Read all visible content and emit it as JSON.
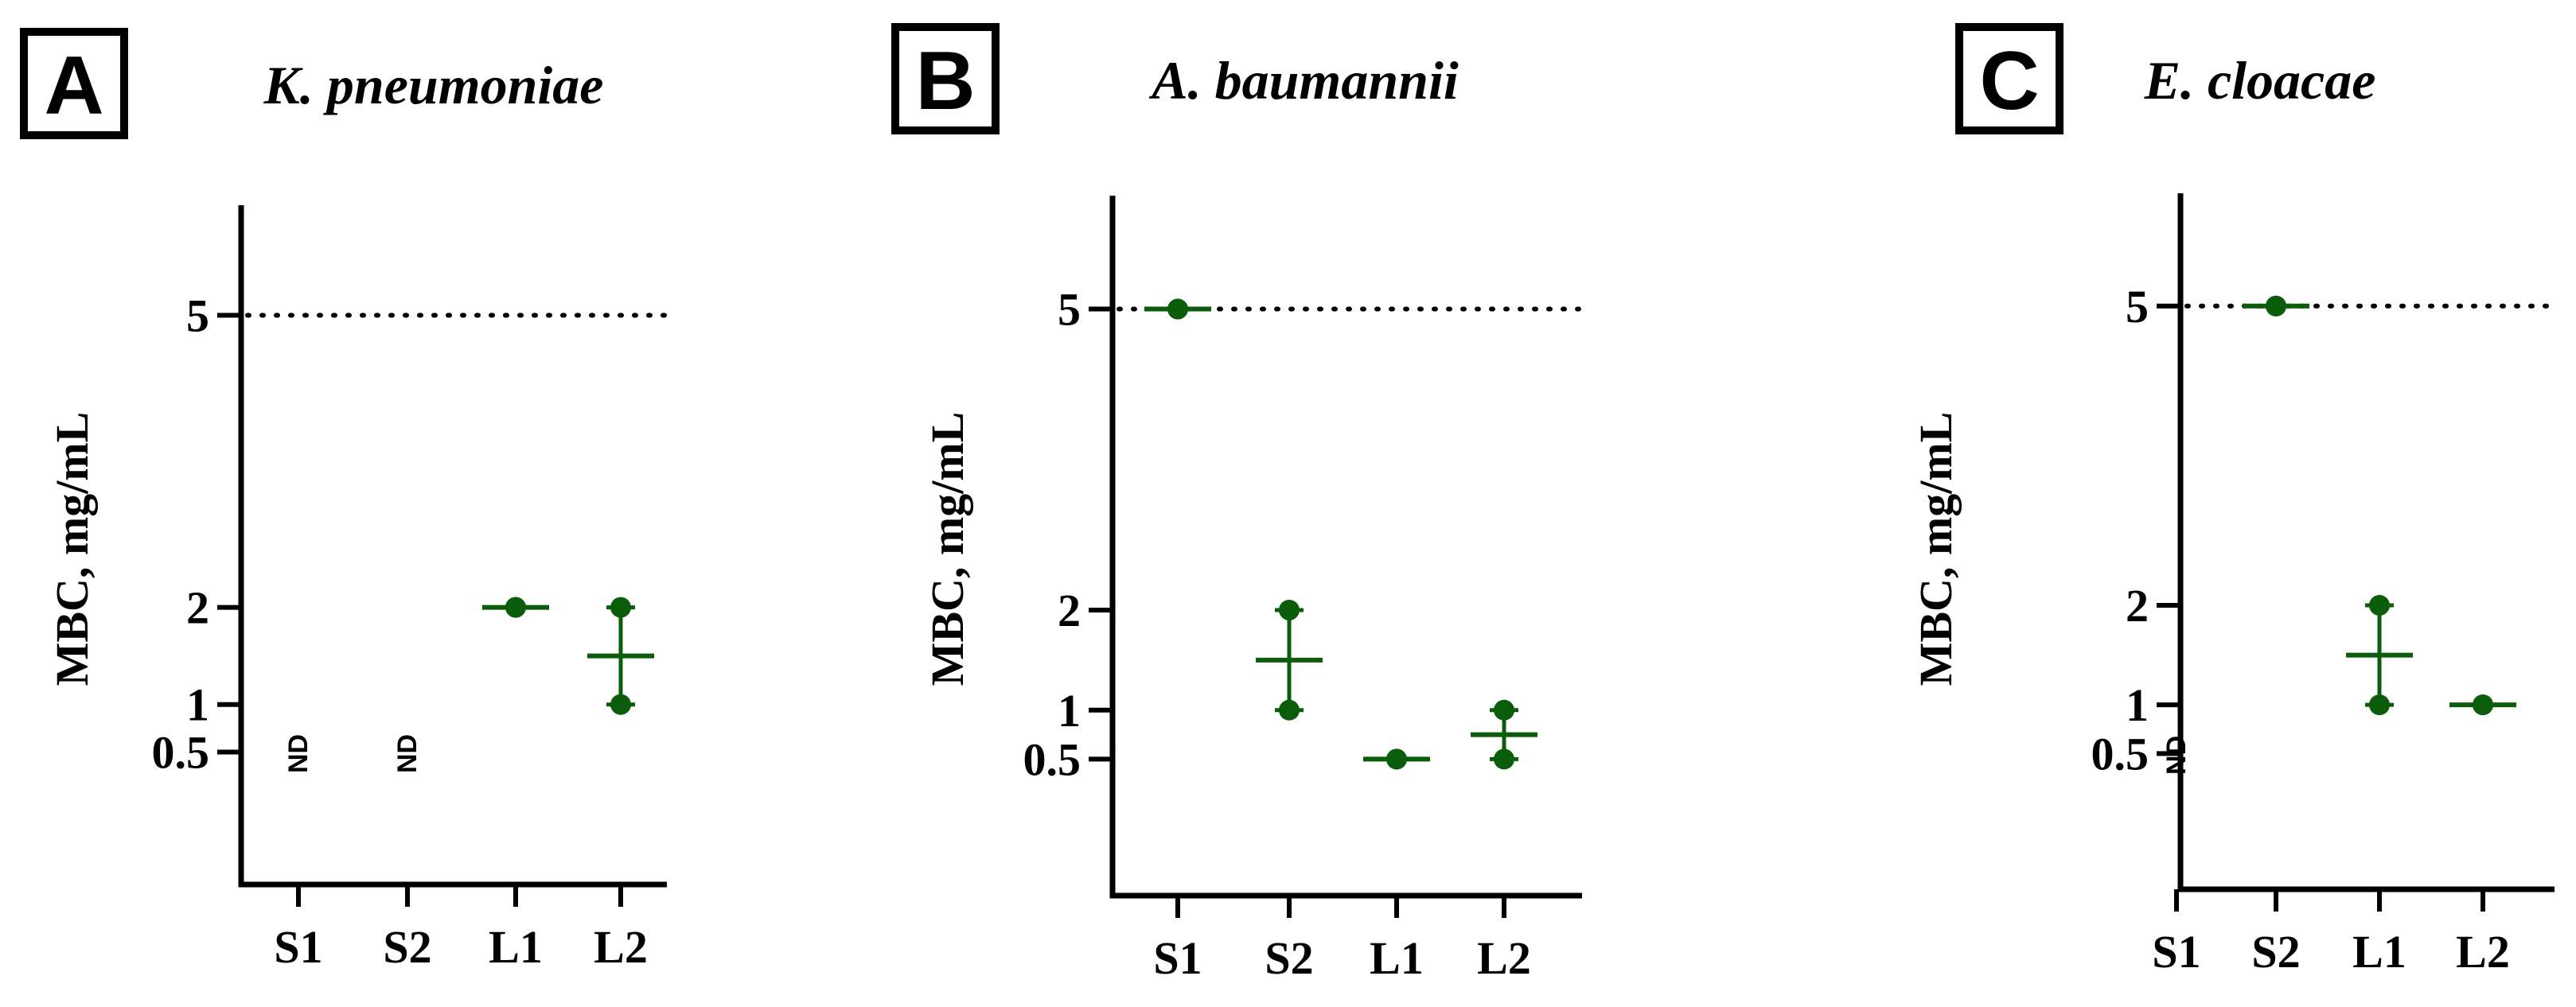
{
  "figure": {
    "accent_color": "#0b5d0b",
    "axis_color": "#000000"
  },
  "chart_data": [
    {
      "type": "scatter",
      "panel_label": "A",
      "title": "K. pneumoniae",
      "ylabel": "MBC, mg/mL",
      "xlabel": "",
      "categories": [
        "S1",
        "S2",
        "L1",
        "L2"
      ],
      "y_ticks": [
        0.5,
        1,
        2,
        5
      ],
      "y_tick_labels": [
        "0.5",
        "1",
        "2",
        "5"
      ],
      "ylim": [
        0,
        6
      ],
      "reference_line": {
        "y": 5,
        "style": "dotted"
      },
      "groups": [
        {
          "category": "S1",
          "points": [],
          "mean": null,
          "range": null,
          "note": "ND"
        },
        {
          "category": "S2",
          "points": [],
          "mean": null,
          "range": null,
          "note": "ND"
        },
        {
          "category": "L1",
          "points": [
            2,
            2
          ],
          "mean": 2,
          "range": [
            2,
            2
          ],
          "note": ""
        },
        {
          "category": "L2",
          "points": [
            1,
            2
          ],
          "mean": 1.5,
          "range": [
            1,
            2
          ],
          "note": ""
        }
      ]
    },
    {
      "type": "scatter",
      "panel_label": "B",
      "title": "A. baumannii",
      "ylabel": "MBC, mg/mL",
      "xlabel": "",
      "categories": [
        "S1",
        "S2",
        "L1",
        "L2"
      ],
      "y_ticks": [
        0.5,
        1,
        2,
        5
      ],
      "y_tick_labels": [
        "0.5",
        "1",
        "2",
        "5"
      ],
      "ylim": [
        0,
        6
      ],
      "reference_line": {
        "y": 5,
        "style": "dotted"
      },
      "groups": [
        {
          "category": "S1",
          "points": [
            5,
            5
          ],
          "mean": 5,
          "range": [
            5,
            5
          ],
          "note": ""
        },
        {
          "category": "S2",
          "points": [
            1,
            2
          ],
          "mean": 1.5,
          "range": [
            1,
            2
          ],
          "note": ""
        },
        {
          "category": "L1",
          "points": [
            0.5,
            0.5
          ],
          "mean": 0.5,
          "range": [
            0.5,
            0.5
          ],
          "note": ""
        },
        {
          "category": "L2",
          "points": [
            0.5,
            1
          ],
          "mean": 0.75,
          "range": [
            0.5,
            1
          ],
          "note": ""
        }
      ]
    },
    {
      "type": "scatter",
      "panel_label": "C",
      "title": "E. cloacae",
      "ylabel": "MBC, mg/mL",
      "xlabel": "",
      "categories": [
        "S1",
        "S2",
        "L1",
        "L2"
      ],
      "y_ticks": [
        0.5,
        1,
        2,
        5
      ],
      "y_tick_labels": [
        "0.5",
        "1",
        "2",
        "5"
      ],
      "ylim": [
        0,
        6
      ],
      "reference_line": {
        "y": 5,
        "style": "dotted"
      },
      "groups": [
        {
          "category": "S1",
          "points": [],
          "mean": null,
          "range": null,
          "note": "ND"
        },
        {
          "category": "S2",
          "points": [
            5,
            5
          ],
          "mean": 5,
          "range": [
            5,
            5
          ],
          "note": ""
        },
        {
          "category": "L1",
          "points": [
            1,
            2
          ],
          "mean": 1.5,
          "range": [
            1,
            2
          ],
          "note": ""
        },
        {
          "category": "L2",
          "points": [
            1,
            1
          ],
          "mean": 1,
          "range": [
            1,
            1
          ],
          "note": ""
        }
      ]
    }
  ]
}
